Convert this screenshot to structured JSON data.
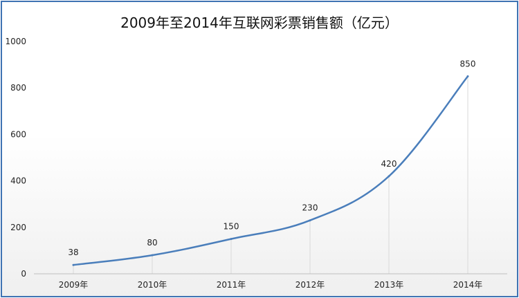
{
  "chart_data": {
    "type": "line",
    "title": "2009年至2014年互联网彩票销售额（亿元）",
    "categories": [
      "2009年",
      "2010年",
      "2011年",
      "2012年",
      "2013年",
      "2014年"
    ],
    "series": [
      {
        "values": [
          38,
          80,
          150,
          230,
          420,
          850
        ]
      }
    ],
    "data_labels": [
      "38",
      "80",
      "150",
      "230",
      "420",
      "850"
    ],
    "ylim": [
      0,
      1000
    ],
    "yticks": [
      0,
      200,
      400,
      600,
      800,
      1000
    ],
    "ytick_labels": [
      "0",
      "200",
      "400",
      "600",
      "800",
      "1000"
    ],
    "line_color": "#4a7ebb",
    "frame_color": "#3f73b3",
    "grid": false,
    "legend": "none"
  }
}
